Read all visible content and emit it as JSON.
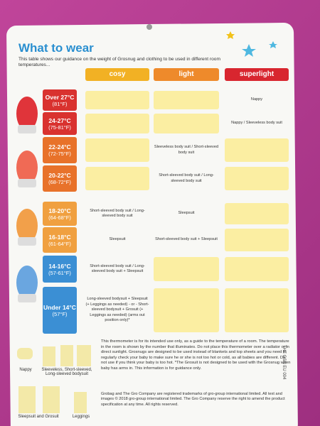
{
  "title": "What to wear",
  "intro": "This table shows our guidance on the weight of Grosnug and clothing to be used in different room temperatures...",
  "columns": [
    "cosy",
    "light",
    "superlight"
  ],
  "rows": [
    {
      "temp": "Over 27°C",
      "temp_f": "(81°F)",
      "cells": [
        null,
        null,
        "Nappy"
      ]
    },
    {
      "temp": "24-27°C",
      "temp_f": "(75-81°F)",
      "cells": [
        null,
        null,
        "Nappy / Sleeveless body suit"
      ]
    },
    {
      "temp": "22-24°C",
      "temp_f": "(72-75°F)",
      "cells": [
        null,
        "Sleeveless body suit / Short-sleeved body suit",
        null
      ]
    },
    {
      "temp": "20-22°C",
      "temp_f": "(68-72°F)",
      "cells": [
        null,
        "Short-sleeved body suit / Long-sleeved body suit",
        null
      ]
    },
    {
      "temp": "18-20°C",
      "temp_f": "(64-68°F)",
      "cells": [
        "Short-sleeved body suit / Long-sleeved body suit",
        "Sleepsuit",
        null
      ]
    },
    {
      "temp": "16-18°C",
      "temp_f": "(61-64°F)",
      "cells": [
        "Sleepsuit",
        "Short-sleeved body suit + Sleepsuit",
        null
      ]
    },
    {
      "temp": "14-16°C",
      "temp_f": "(57-61°F)",
      "cells": [
        "Short-sleeved body suit / Long-sleeved body suit + Sleepsuit",
        null,
        null
      ]
    },
    {
      "temp": "Under 14°C",
      "temp_f": "(57°F)",
      "cells": [
        "Long-sleeved bodysuit + Sleepsuit (+ Leggings as needed) - or - Short-sleeved bodysuit + Grosuit (+ Leggings as needed) (arms out position only)*",
        null,
        null
      ]
    }
  ],
  "note": "This thermometer is for its intended use only, as a guide to the temperature of a room. The temperature in the room is shown by the number that illuminates. Do not place this thermometer over a radiator or in direct sunlight. Grosnugs are designed to be used instead of blankets and top sheets and you need to regularly check your baby to make sure he or she is not too hot or cold, as all babies are different. Do not use if you think your baby is too hot. *The Grosuit is not designed to be used with the Grosnug when baby has arms in. This information is for guidance only.",
  "trademark": "Grobag and The Gro Company are registered trademarks of gro-group international limited. All text and images © 2018 gro-group international limited. The Gro Company reserve the right to amend the product specification at any time. All rights reserved.",
  "code": "THE GSN EU 004",
  "icons": [
    "Nappy",
    "Sleeveless, Short-sleeved, Long-sleeved bodysuit",
    "Sleepsuit and Grosuit",
    "Leggings"
  ]
}
